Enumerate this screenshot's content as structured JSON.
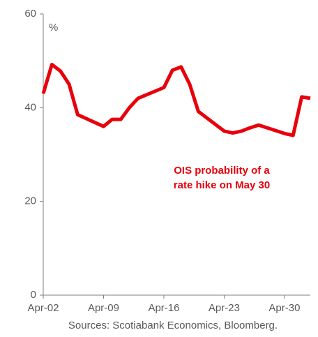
{
  "chart_data": {
    "type": "line",
    "unit_label": "%",
    "annotation": [
      "OIS probability of a",
      "rate hike on May 30"
    ],
    "source": "Sources: Scotiabank Economics, Bloomberg.",
    "x": [
      "Apr-02",
      "Apr-03",
      "Apr-04",
      "Apr-05",
      "Apr-06",
      "Apr-09",
      "Apr-10",
      "Apr-11",
      "Apr-12",
      "Apr-13",
      "Apr-16",
      "Apr-17",
      "Apr-18",
      "Apr-19",
      "Apr-20",
      "Apr-23",
      "Apr-24",
      "Apr-25",
      "Apr-26",
      "Apr-27",
      "Apr-30",
      "May-01",
      "May-02",
      "May-03"
    ],
    "series": [
      {
        "name": "OIS probability of a rate hike on May 30",
        "color": "#e8000b",
        "values": [
          43,
          49.2,
          47.8,
          45,
          38.5,
          36,
          37.5,
          37.5,
          40,
          42,
          44.3,
          48,
          48.7,
          45,
          39.2,
          35,
          34.6,
          35,
          35.7,
          36.3,
          34.5,
          34.1,
          42.3,
          42
        ]
      }
    ],
    "xlim": [
      "Apr-02",
      "May-03"
    ],
    "xticks": [
      "Apr-02",
      "Apr-09",
      "Apr-16",
      "Apr-23",
      "Apr-30"
    ],
    "ylim": [
      0,
      60
    ],
    "yticks": [
      0,
      20,
      40,
      60
    ],
    "grid": false
  }
}
